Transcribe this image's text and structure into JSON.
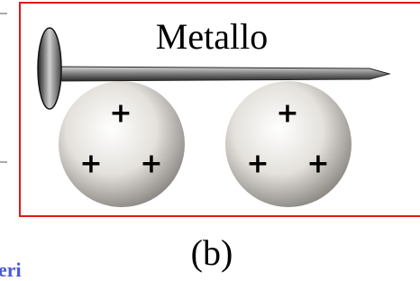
{
  "label": "Metallo",
  "spheres": [
    {
      "charges": [
        "+",
        "+",
        "+"
      ]
    },
    {
      "charges": [
        "+",
        "+",
        "+"
      ]
    }
  ],
  "caption": "(b)",
  "side_text": "eri"
}
